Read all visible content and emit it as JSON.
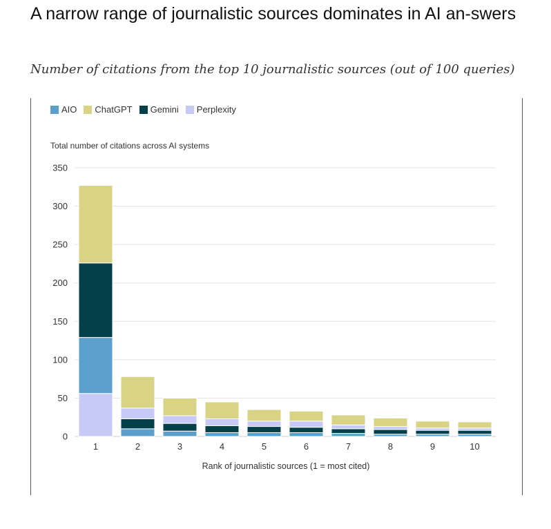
{
  "title": "A narrow range of journalistic sources dominates in AI an-swers",
  "subtitle": "Number of citations from the top 10 journalistic sources (out of 100 queries)",
  "chart_data": {
    "type": "bar",
    "stacked": true,
    "title": "A narrow range of journalistic sources dominates in AI answers",
    "subtitle": "Number of citations from the top 10 journalistic sources (out of 100 queries)",
    "ylabel": "Total number of citations across AI systems",
    "xlabel": "Rank of journalistic sources (1 = most cited)",
    "categories": [
      "1",
      "2",
      "3",
      "4",
      "5",
      "6",
      "7",
      "8",
      "9",
      "10"
    ],
    "ylim": [
      0,
      350
    ],
    "yticks": [
      0,
      50,
      100,
      150,
      200,
      250,
      300,
      350
    ],
    "grid": true,
    "legend_position": "top-left",
    "series": [
      {
        "name": "Perplexity",
        "color": "#c7caf6",
        "values": [
          56,
          0,
          0,
          0,
          0,
          0,
          0,
          0,
          0,
          0
        ]
      },
      {
        "name": "AIO",
        "color": "#5ba0cd",
        "values": [
          73,
          10,
          7,
          5,
          5,
          5,
          4,
          3,
          3,
          3
        ]
      },
      {
        "name": "Gemini",
        "color": "#03404a",
        "values": [
          97,
          13,
          10,
          9,
          8,
          7,
          6,
          6,
          5,
          5
        ]
      },
      {
        "name": "Perplexity",
        "color": "#c7caf6",
        "values": [
          0,
          14,
          10,
          9,
          7,
          8,
          5,
          4,
          3,
          3
        ]
      },
      {
        "name": "ChatGPT",
        "color": "#d9d386",
        "values": [
          101,
          41,
          23,
          22,
          15,
          13,
          13,
          11,
          9,
          8
        ]
      }
    ],
    "legend": [
      {
        "name": "AIO",
        "color": "#5ba0cd"
      },
      {
        "name": "ChatGPT",
        "color": "#d9d386"
      },
      {
        "name": "Gemini",
        "color": "#03404a"
      },
      {
        "name": "Perplexity",
        "color": "#c7caf6"
      }
    ]
  }
}
